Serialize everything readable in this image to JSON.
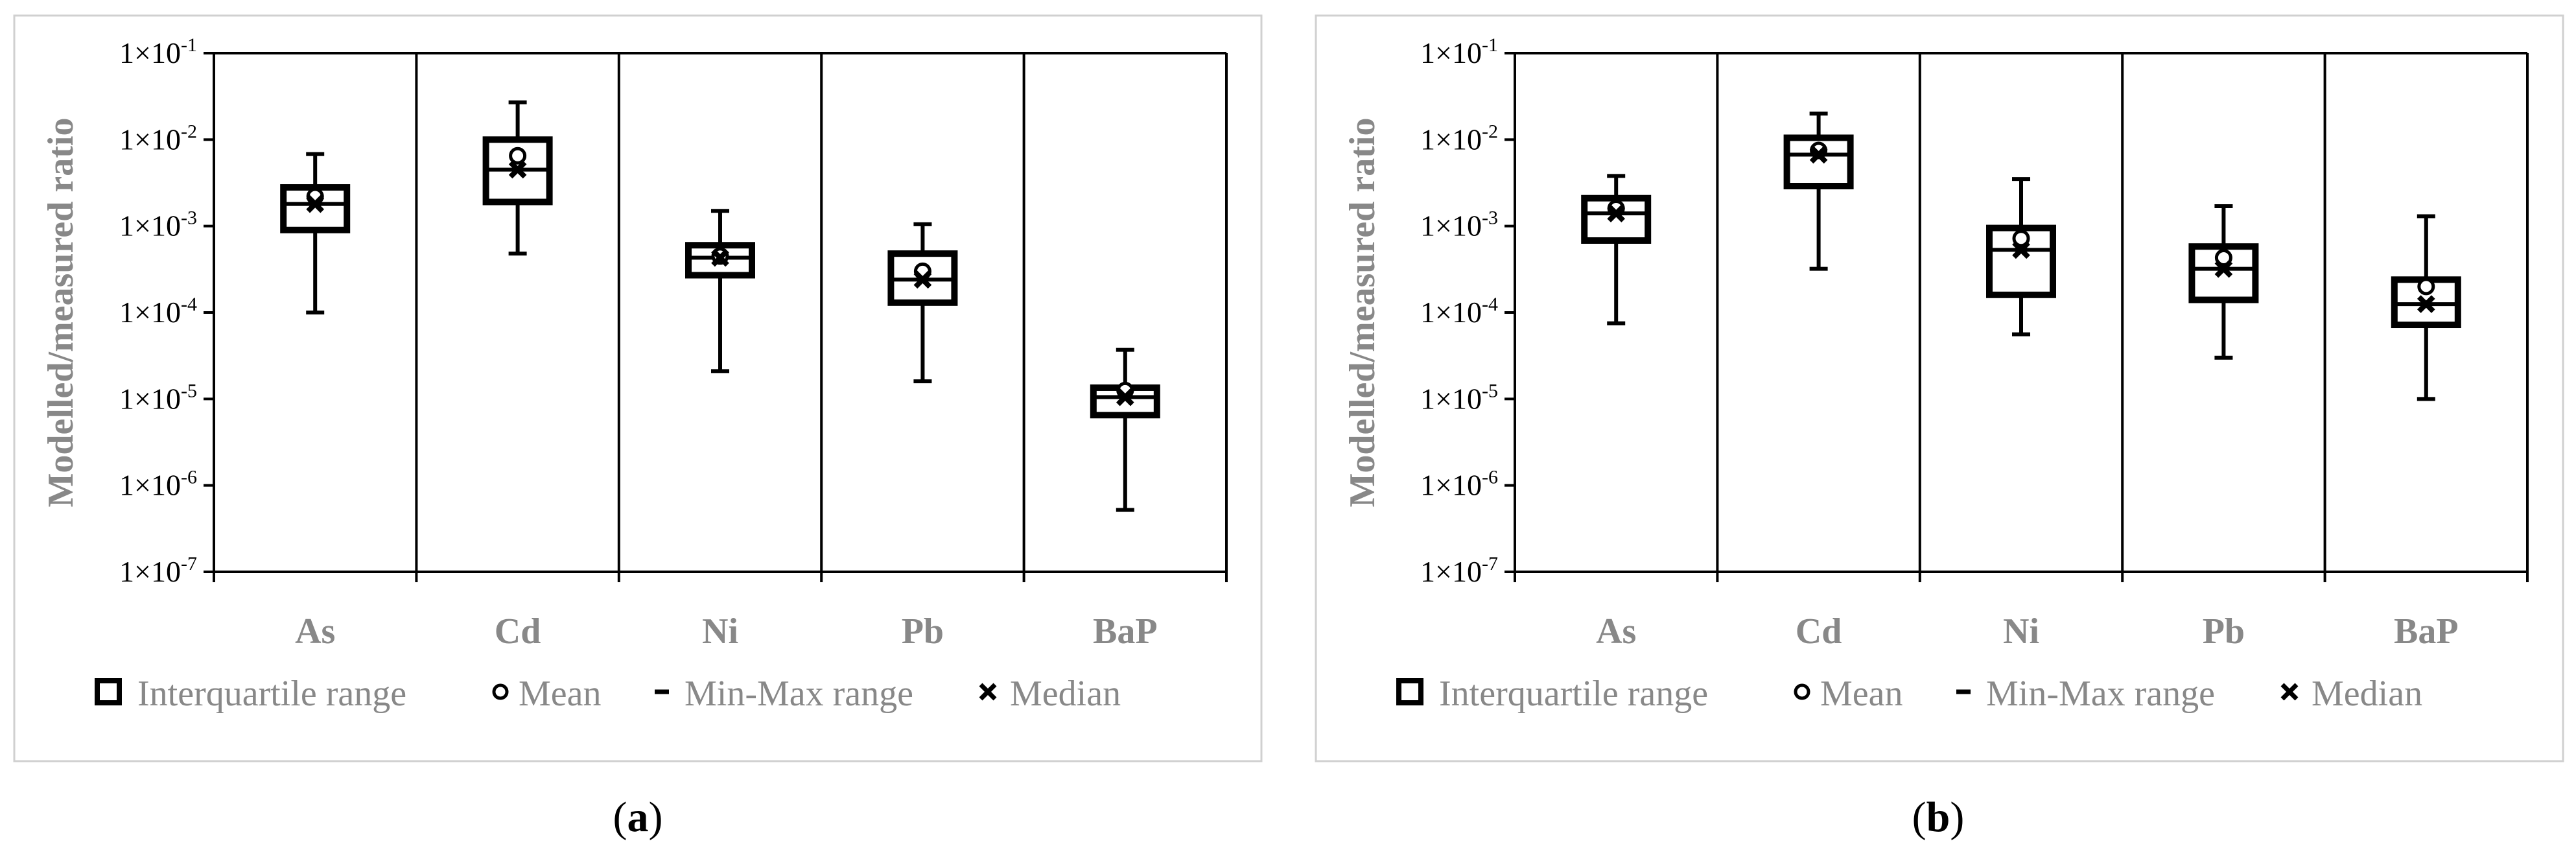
{
  "chart_data": [
    {
      "type": "boxplot",
      "panel": "a",
      "ylabel": "Modelled/measured ratio",
      "yscale": "log",
      "ylim": [
        1e-07,
        0.1
      ],
      "yticks": [
        {
          "base": "1×10",
          "exp": "-7"
        },
        {
          "base": "1×10",
          "exp": "-6"
        },
        {
          "base": "1×10",
          "exp": "-5"
        },
        {
          "base": "1×10",
          "exp": "-4"
        },
        {
          "base": "1×10",
          "exp": "-3"
        },
        {
          "base": "1×10",
          "exp": "-2"
        },
        {
          "base": "1×10",
          "exp": "-1"
        }
      ],
      "categories": [
        "As",
        "Cd",
        "Ni",
        "Pb",
        "BaP"
      ],
      "series": [
        {
          "category": "As",
          "min": 0.0001,
          "q1": 0.0009,
          "median": 0.0018,
          "q3": 0.0028,
          "max": 0.0068,
          "mean": 0.0022
        },
        {
          "category": "Cd",
          "min": 0.00048,
          "q1": 0.0019,
          "median": 0.0045,
          "q3": 0.01,
          "max": 0.027,
          "mean": 0.0065
        },
        {
          "category": "Ni",
          "min": 2.1e-05,
          "q1": 0.00027,
          "median": 0.00043,
          "q3": 0.0006,
          "max": 0.0015,
          "mean": 0.00045
        },
        {
          "category": "Pb",
          "min": 1.6e-05,
          "q1": 0.00013,
          "median": 0.00024,
          "q3": 0.00048,
          "max": 0.00105,
          "mean": 0.0003
        },
        {
          "category": "BaP",
          "min": 5.2e-07,
          "q1": 6.5e-06,
          "median": 1.05e-05,
          "q3": 1.35e-05,
          "max": 3.7e-05,
          "mean": 1.25e-05
        }
      ]
    },
    {
      "type": "boxplot",
      "panel": "b",
      "ylabel": "Modelled/measured ratio",
      "yscale": "log",
      "ylim": [
        1e-07,
        0.1
      ],
      "yticks": [
        {
          "base": "1×10",
          "exp": "-7"
        },
        {
          "base": "1×10",
          "exp": "-6"
        },
        {
          "base": "1×10",
          "exp": "-5"
        },
        {
          "base": "1×10",
          "exp": "-4"
        },
        {
          "base": "1×10",
          "exp": "-3"
        },
        {
          "base": "1×10",
          "exp": "-2"
        },
        {
          "base": "1×10",
          "exp": "-1"
        }
      ],
      "categories": [
        "As",
        "Cd",
        "Ni",
        "Pb",
        "BaP"
      ],
      "series": [
        {
          "category": "As",
          "min": 7.5e-05,
          "q1": 0.00068,
          "median": 0.0014,
          "q3": 0.0021,
          "max": 0.0038,
          "mean": 0.0016
        },
        {
          "category": "Cd",
          "min": 0.00032,
          "q1": 0.0029,
          "median": 0.0067,
          "q3": 0.0105,
          "max": 0.02,
          "mean": 0.0075
        },
        {
          "category": "Ni",
          "min": 5.6e-05,
          "q1": 0.00016,
          "median": 0.00053,
          "q3": 0.00095,
          "max": 0.0035,
          "mean": 0.00072
        },
        {
          "category": "Pb",
          "min": 3e-05,
          "q1": 0.00014,
          "median": 0.00032,
          "q3": 0.00058,
          "max": 0.0017,
          "mean": 0.00043
        },
        {
          "category": "BaP",
          "min": 1e-05,
          "q1": 7.2e-05,
          "median": 0.000125,
          "q3": 0.00024,
          "max": 0.0013,
          "mean": 0.0002
        }
      ]
    }
  ],
  "legend": {
    "iqr": "Interquartile range",
    "mean": "Mean",
    "minmax": "Min-Max range",
    "median": "Median"
  },
  "panel_labels": {
    "a": {
      "open": "(",
      "letter": "a",
      "close": ")"
    },
    "b": {
      "open": "(",
      "letter": "b",
      "close": ")"
    }
  }
}
